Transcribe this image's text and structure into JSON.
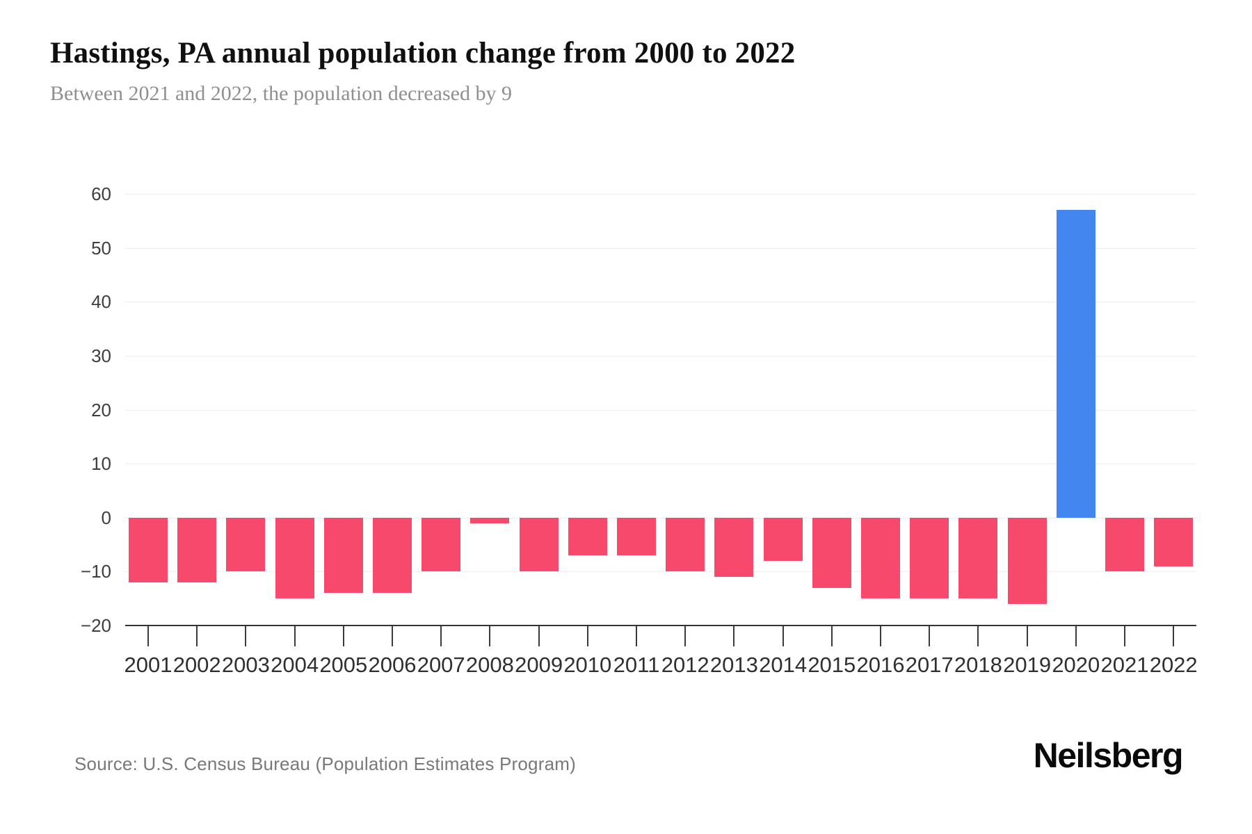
{
  "header": {
    "title": "Hastings, PA annual population change from 2000 to 2022",
    "subtitle": "Between 2021 and 2022, the population decreased by 9"
  },
  "footer": {
    "source": "Source: U.S. Census Bureau (Population Estimates Program)",
    "brand": "Neilsberg"
  },
  "chart_data": {
    "type": "bar",
    "title": "Hastings, PA annual population change from 2000 to 2022",
    "xlabel": "",
    "ylabel": "",
    "categories": [
      "2001",
      "2002",
      "2003",
      "2004",
      "2005",
      "2006",
      "2007",
      "2008",
      "2009",
      "2010",
      "2011",
      "2012",
      "2013",
      "2014",
      "2015",
      "2016",
      "2017",
      "2018",
      "2019",
      "2020",
      "2021",
      "2022"
    ],
    "values": [
      -12,
      -12,
      -10,
      -15,
      -14,
      -14,
      -10,
      -1,
      -10,
      -7,
      -7,
      -10,
      -11,
      -8,
      -13,
      -15,
      -15,
      -15,
      -16,
      57,
      -10,
      -9
    ],
    "ylim": [
      -20,
      60
    ],
    "yticks": [
      60,
      50,
      40,
      30,
      20,
      10,
      0,
      -10,
      -20
    ],
    "ytick_labels": [
      "60",
      "50",
      "40",
      "30",
      "20",
      "10",
      "0",
      "−10",
      "−20"
    ],
    "grid": true,
    "legend": false,
    "colors": {
      "negative_bar": "#f7496c",
      "positive_bar": "#4486f0",
      "gridline": "#ededed",
      "axis": "#333333"
    }
  }
}
